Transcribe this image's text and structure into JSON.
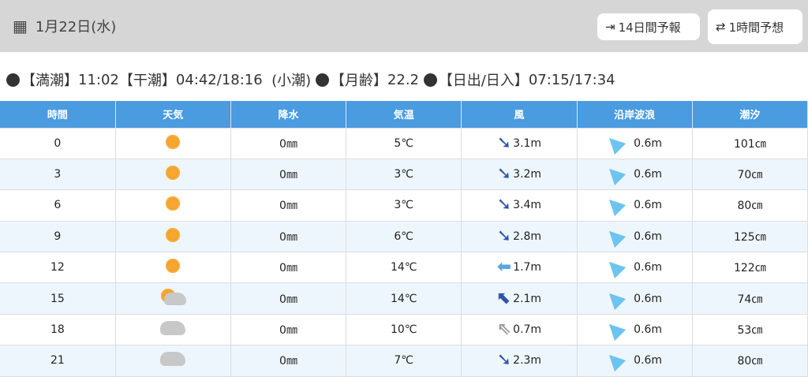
{
  "header": {
    "date": "1月22日(水)",
    "btn14": "14日間予報",
    "btn1h": "1時間予想"
  },
  "info": {
    "high_label": "【満潮】",
    "high": "11:02",
    "low_label": "【干潮】",
    "low": "04:42/18:16",
    "tide_type": "(小潮)",
    "moon_label": "【月齢】",
    "moon": "22.2",
    "sun_label": "【日出/日入】",
    "sun": "07:15/17:34"
  },
  "columns": [
    "時間",
    "天気",
    "降水",
    "気温",
    "風",
    "沿岸波浪",
    "潮汐"
  ],
  "rows": [
    {
      "time": "0",
      "weather": "sunny",
      "rain": "0㎜",
      "temp": "5℃",
      "wind_dir": "down-right",
      "wind": "3.1m",
      "wave": "0.6m",
      "tide": "101㎝"
    },
    {
      "time": "3",
      "weather": "sunny",
      "rain": "0㎜",
      "temp": "3℃",
      "wind_dir": "down-right",
      "wind": "3.2m",
      "wave": "0.6m",
      "tide": "70㎝"
    },
    {
      "time": "6",
      "weather": "sunny",
      "rain": "0㎜",
      "temp": "3℃",
      "wind_dir": "down-right",
      "wind": "3.4m",
      "wave": "0.6m",
      "tide": "80㎝"
    },
    {
      "time": "9",
      "weather": "sunny",
      "rain": "0㎜",
      "temp": "6℃",
      "wind_dir": "down-right",
      "wind": "2.8m",
      "wave": "0.6m",
      "tide": "125㎝"
    },
    {
      "time": "12",
      "weather": "sunny",
      "rain": "0㎜",
      "temp": "14℃",
      "wind_dir": "left",
      "wind": "1.7m",
      "wave": "0.6m",
      "tide": "122㎝"
    },
    {
      "time": "15",
      "weather": "sunny-cloudy",
      "rain": "0㎜",
      "temp": "14℃",
      "wind_dir": "up-left",
      "wind": "2.1m",
      "wave": "0.6m",
      "tide": "74㎝"
    },
    {
      "time": "18",
      "weather": "cloudy",
      "rain": "0㎜",
      "temp": "10℃",
      "wind_dir": "up-left-light",
      "wind": "0.7m",
      "wave": "0.6m",
      "tide": "53㎝"
    },
    {
      "time": "21",
      "weather": "cloudy",
      "rain": "0㎜",
      "temp": "7℃",
      "wind_dir": "down-right",
      "wind": "2.3m",
      "wave": "0.6m",
      "tide": "80㎝"
    }
  ],
  "colors": {
    "header_bg": "#4a9be0",
    "stripe": "#eef6fd",
    "wind_strong": "#2f56a6",
    "wind_light": "#5aa6e0"
  }
}
